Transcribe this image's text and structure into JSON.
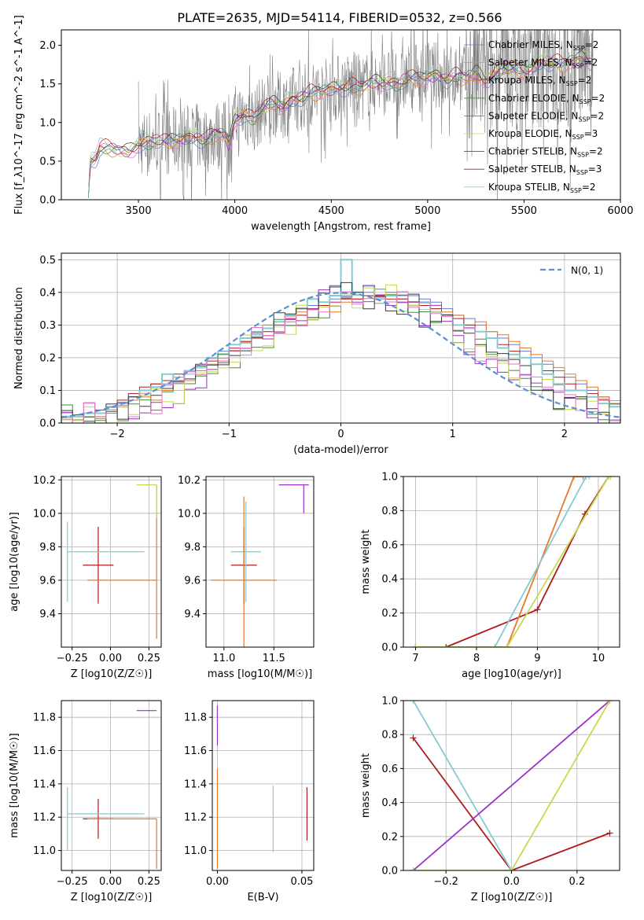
{
  "title": "PLATE=2635, MJD=54114, FIBERID=0532, z=0.566",
  "colors": {
    "chabrier_miles": "#5b7fd0",
    "salpeter_miles": "#e377c2",
    "kroupa_miles": "#e8772a",
    "chabrier_elodie": "#3f8f3f",
    "salpeter_elodie": "#9b30c8",
    "kroupa_elodie": "#c8d850",
    "chabrier_stelib": "#3a3a3a",
    "salpeter_stelib": "#b01a1a",
    "kroupa_stelib": "#85cbd3",
    "spectrum": "#808080",
    "normal": "#5b8fd6"
  },
  "chart_data": [
    {
      "id": "spectrum",
      "type": "line",
      "xlabel": "wavelength [Angstrom, rest frame]",
      "ylabel": "Flux [f_λ10^-17 erg cm^-2 s^-1 A^-1]",
      "xlim": [
        3100,
        6000
      ],
      "ylim": [
        0,
        2.2
      ],
      "xticks": [
        "3500",
        "4000",
        "4500",
        "5000",
        "5500",
        "6000"
      ],
      "yticks": [
        "0.0",
        "0.5",
        "1.0",
        "1.5",
        "2.0"
      ],
      "grid": false,
      "legend_position": "top-right",
      "legend": [
        {
          "text": "Chabrier MILES, N",
          "sub": "SSP",
          "suffix": "=2"
        },
        {
          "text": "Salpeter MILES, N",
          "sub": "SSP",
          "suffix": "=2"
        },
        {
          "text": "Kroupa MILES, N",
          "sub": "SSP",
          "suffix": "=2"
        },
        {
          "text": "Chabrier ELODIE, N",
          "sub": "SSP",
          "suffix": "=2"
        },
        {
          "text": "Salpeter ELODIE, N",
          "sub": "SSP",
          "suffix": "=2"
        },
        {
          "text": "Kroupa ELODIE, N",
          "sub": "SSP",
          "suffix": "=3"
        },
        {
          "text": "Chabrier STELIB, N",
          "sub": "SSP",
          "suffix": "=2"
        },
        {
          "text": "Salpeter STELIB, N",
          "sub": "SSP",
          "suffix": "=3"
        },
        {
          "text": "Kroupa STELIB, N",
          "sub": "SSP",
          "suffix": "=2"
        }
      ],
      "model_curve": {
        "x": [
          3240,
          3250,
          3280,
          3300,
          3350,
          3400,
          3450,
          3500,
          3550,
          3600,
          3650,
          3700,
          3750,
          3800,
          3850,
          3900,
          3950,
          3970,
          4000,
          4050,
          4100,
          4150,
          4200,
          4250,
          4300,
          4350,
          4400,
          4450,
          4500,
          4550,
          4600,
          4650,
          4700,
          4750,
          4800,
          4850,
          4900,
          4950,
          5000,
          5050,
          5100,
          5150,
          5200,
          5250,
          5300,
          5400,
          5500,
          5600,
          5700,
          5800,
          5860
        ],
        "y": [
          0.02,
          0.5,
          0.55,
          0.68,
          0.67,
          0.63,
          0.62,
          0.72,
          0.75,
          0.76,
          0.74,
          0.78,
          0.8,
          0.82,
          0.76,
          0.86,
          0.84,
          0.7,
          1.05,
          1.12,
          1.05,
          1.2,
          1.24,
          1.22,
          1.3,
          1.33,
          1.38,
          1.4,
          1.44,
          1.46,
          1.48,
          1.45,
          1.5,
          1.52,
          1.53,
          1.5,
          1.58,
          1.55,
          1.6,
          1.62,
          1.57,
          1.6,
          1.58,
          1.65,
          1.55,
          1.72,
          1.65,
          1.8,
          1.75,
          1.84,
          1.8
        ]
      }
    },
    {
      "id": "residuals",
      "type": "line",
      "xlabel": "(data-model)/error",
      "ylabel": "Normed distribution",
      "xlim": [
        -2.5,
        2.5
      ],
      "ylim": [
        0,
        0.52
      ],
      "xticks": [
        "−2",
        "−1",
        "0",
        "1",
        "2"
      ],
      "yticks": [
        "0.0",
        "0.1",
        "0.2",
        "0.3",
        "0.4",
        "0.5"
      ],
      "grid": true,
      "legend_position": "top-right",
      "legend": [
        {
          "text": "N(0, 1)"
        }
      ],
      "histogram_bin_width": 0.1,
      "histogram_series": [
        {
          "model": "Chabrier MILES",
          "values": [
            0.02,
            0.02,
            0.03,
            0.03,
            0.04,
            0.06,
            0.08,
            0.1,
            0.12,
            0.12,
            0.13,
            0.15,
            0.17,
            0.2,
            0.22,
            0.24,
            0.26,
            0.28,
            0.3,
            0.31,
            0.33,
            0.35,
            0.36,
            0.37,
            0.38,
            0.39,
            0.4,
            0.4,
            0.41,
            0.4,
            0.39,
            0.39,
            0.38,
            0.37,
            0.35,
            0.33,
            0.32,
            0.3,
            0.28,
            0.26,
            0.24,
            0.22,
            0.2,
            0.18,
            0.16,
            0.14,
            0.12,
            0.1,
            0.08,
            0.06
          ]
        },
        {
          "model": "Kroupa MILES",
          "values": [
            0.01,
            0.01,
            0.02,
            0.02,
            0.03,
            0.05,
            0.07,
            0.08,
            0.07,
            0.1,
            0.14,
            0.13,
            0.16,
            0.18,
            0.19,
            0.22,
            0.25,
            0.27,
            0.3,
            0.28,
            0.31,
            0.34,
            0.35,
            0.36,
            0.34,
            0.37,
            0.38,
            0.39,
            0.38,
            0.4,
            0.38,
            0.36,
            0.37,
            0.35,
            0.34,
            0.33,
            0.3,
            0.31,
            0.28,
            0.27,
            0.25,
            0.23,
            0.21,
            0.19,
            0.17,
            0.15,
            0.13,
            0.11,
            0.08,
            0.06
          ]
        },
        {
          "model": "Salpeter STELIB",
          "values": [
            0.02,
            0.02,
            0.03,
            0.04,
            0.05,
            0.07,
            0.09,
            0.11,
            0.12,
            0.13,
            0.15,
            0.16,
            0.18,
            0.19,
            0.21,
            0.23,
            0.25,
            0.26,
            0.28,
            0.3,
            0.32,
            0.33,
            0.35,
            0.36,
            0.37,
            0.38,
            0.38,
            0.39,
            0.39,
            0.38,
            0.38,
            0.37,
            0.36,
            0.35,
            0.33,
            0.32,
            0.3,
            0.28,
            0.26,
            0.24,
            0.22,
            0.2,
            0.18,
            0.16,
            0.14,
            0.12,
            0.1,
            0.09,
            0.07,
            0.05
          ]
        },
        {
          "model": "Kroupa STELIB",
          "values": [
            0.02,
            0.02,
            0.03,
            0.03,
            0.05,
            0.06,
            0.08,
            0.1,
            0.11,
            0.15,
            0.13,
            0.16,
            0.17,
            0.2,
            0.21,
            0.24,
            0.26,
            0.27,
            0.29,
            0.31,
            0.33,
            0.35,
            0.38,
            0.37,
            0.39,
            0.5,
            0.4,
            0.42,
            0.38,
            0.39,
            0.37,
            0.36,
            0.37,
            0.34,
            0.33,
            0.3,
            0.29,
            0.28,
            0.26,
            0.23,
            0.21,
            0.2,
            0.18,
            0.15,
            0.12,
            0.1,
            0.1,
            0.08,
            0.06,
            0.05
          ]
        }
      ],
      "normal_curve": {
        "mean": 0,
        "sigma": 1
      }
    },
    {
      "id": "age-vs-Z",
      "type": "scatter",
      "xlabel": "Z [log10(Z/Z☉)]",
      "ylabel": "age [log10(age/yr)]",
      "xlim": [
        -0.32,
        0.33
      ],
      "ylim": [
        9.2,
        10.22
      ],
      "xticks": [
        "−0.25",
        "0.00",
        "0.25"
      ],
      "yticks": [
        "9.4",
        "9.6",
        "9.8",
        "10.0",
        "10.2"
      ],
      "grid": true,
      "points": [
        {
          "x": -0.08,
          "y": 9.69,
          "xerr": 0.1,
          "yerr": 0.23,
          "model": "Salpeter STELIB"
        },
        {
          "x": -0.28,
          "y": 9.77,
          "xerr": [
            0.0,
            0.5
          ],
          "yerr": [
            0.3,
            0.18
          ],
          "model": "Kroupa STELIB"
        },
        {
          "x": 0.3,
          "y": 9.6,
          "xerr": [
            0.45,
            0.0
          ],
          "yerr": [
            0.35,
            0.57
          ],
          "model": "Kroupa MILES"
        },
        {
          "x": 0.3,
          "y": 10.17,
          "xerr": [
            0.13,
            0.0
          ],
          "yerr": [
            0.2,
            0.0
          ],
          "model": "Kroupa ELODIE"
        }
      ]
    },
    {
      "id": "age-vs-mass",
      "type": "scatter",
      "xlabel": "mass [log10(M/M☉)]",
      "ylabel": "",
      "xlim": [
        10.82,
        11.9
      ],
      "ylim": [
        9.2,
        10.22
      ],
      "xticks": [
        "11.0",
        "11.5"
      ],
      "yticks": [
        "9.4",
        "9.6",
        "9.8",
        "10.0",
        "10.2"
      ],
      "grid": true,
      "points": [
        {
          "x": 11.2,
          "y": 9.69,
          "xerr": 0.13,
          "yerr": 0.23,
          "model": "Salpeter STELIB"
        },
        {
          "x": 11.22,
          "y": 9.77,
          "xerr": 0.15,
          "yerr": 0.3,
          "model": "Kroupa STELIB"
        },
        {
          "x": 11.2,
          "y": 9.6,
          "xerr": 0.33,
          "yerr": 0.5,
          "model": "Kroupa MILES"
        },
        {
          "x": 11.8,
          "y": 10.17,
          "xerr": [
            0.25,
            0.05
          ],
          "yerr": [
            0.17,
            0.0
          ],
          "model": "Salpeter ELODIE"
        }
      ]
    },
    {
      "id": "weight-vs-age",
      "type": "line",
      "xlabel": "age [log10(age/yr)]",
      "ylabel": "mass weight",
      "xlim": [
        6.8,
        10.35
      ],
      "ylim": [
        0,
        1
      ],
      "xticks": [
        "7",
        "8",
        "9",
        "10"
      ],
      "yticks": [
        "0.0",
        "0.2",
        "0.4",
        "0.6",
        "0.8",
        "1.0"
      ],
      "grid": true,
      "series": [
        {
          "model": "Salpeter STELIB",
          "x": [
            7.0,
            7.5,
            9.0,
            9.78,
            10.17
          ],
          "y": [
            0.0,
            0.0,
            0.22,
            0.78,
            1.0
          ]
        },
        {
          "model": "Kroupa MILES",
          "x": [
            7.0,
            8.5,
            9.6,
            9.75
          ],
          "y": [
            0.0,
            0.0,
            1.0,
            1.0
          ]
        },
        {
          "model": "Kroupa STELIB",
          "x": [
            7.0,
            8.3,
            9.8,
            9.85
          ],
          "y": [
            0.0,
            0.0,
            1.0,
            1.0
          ]
        },
        {
          "model": "Kroupa ELODIE",
          "x": [
            7.0,
            8.5,
            10.17,
            10.2
          ],
          "y": [
            0.0,
            0.0,
            1.0,
            1.0
          ]
        }
      ]
    },
    {
      "id": "mass-vs-Z",
      "type": "scatter",
      "xlabel": "Z [log10(Z/Z☉)]",
      "ylabel": "mass [log10(M/M☉)]",
      "xlim": [
        -0.32,
        0.33
      ],
      "ylim": [
        10.88,
        11.9
      ],
      "xticks": [
        "−0.25",
        "0.00",
        "0.25"
      ],
      "yticks": [
        "11.0",
        "11.2",
        "11.4",
        "11.6",
        "11.8"
      ],
      "grid": true,
      "points": [
        {
          "x": -0.08,
          "y": 11.19,
          "xerr": 0.1,
          "yerr": 0.12,
          "model": "Salpeter STELIB"
        },
        {
          "x": -0.28,
          "y": 11.22,
          "xerr": [
            0.0,
            0.5
          ],
          "yerr": [
            0.22,
            0.16
          ],
          "model": "Kroupa STELIB"
        },
        {
          "x": 0.3,
          "y": 11.19,
          "xerr": [
            0.45,
            0.0
          ],
          "yerr": [
            0.3,
            0.0
          ],
          "model": "Kroupa MILES"
        },
        {
          "x": 0.3,
          "y": 11.84,
          "xerr": [
            0.13,
            0.0
          ],
          "yerr": [
            0.0,
            0.0
          ],
          "model": "Salpeter ELODIE"
        }
      ]
    },
    {
      "id": "mass-vs-ebv",
      "type": "scatter",
      "xlabel": "E(B-V)",
      "ylabel": "",
      "xlim": [
        -0.003,
        0.057
      ],
      "ylim": [
        10.88,
        11.9
      ],
      "xticks": [
        "0.00",
        "0.05"
      ],
      "yticks": [
        "11.0",
        "11.2",
        "11.4",
        "11.6",
        "11.8"
      ],
      "grid": true,
      "points": [
        {
          "x": 0.053,
          "y": 11.22,
          "yerr": 0.16,
          "model": "Salpeter STELIB"
        },
        {
          "x": 0.033,
          "y": 11.19,
          "yerr": 0.2,
          "model": "Kroupa STELIB"
        },
        {
          "x": 0.0,
          "y": 11.19,
          "yerr": 0.3,
          "model": "Kroupa MILES"
        },
        {
          "x": 0.0,
          "y": 11.75,
          "yerr": 0.12,
          "model": "Salpeter ELODIE"
        }
      ]
    },
    {
      "id": "weight-vs-Z",
      "type": "line",
      "xlabel": "Z [log10(Z/Z☉)]",
      "ylabel": "mass weight",
      "xlim": [
        -0.33,
        0.33
      ],
      "ylim": [
        0,
        1
      ],
      "xticks": [
        "−0.2",
        "0.0",
        "0.2"
      ],
      "yticks": [
        "0.0",
        "0.2",
        "0.4",
        "0.6",
        "0.8",
        "1.0"
      ],
      "grid": true,
      "series": [
        {
          "model": "Salpeter STELIB",
          "x": [
            -0.3,
            0.0,
            0.3
          ],
          "y": [
            0.78,
            0.0,
            0.22
          ]
        },
        {
          "model": "Kroupa STELIB",
          "x": [
            -0.3,
            0.0
          ],
          "y": [
            1.0,
            0.0
          ]
        },
        {
          "model": "Salpeter ELODIE",
          "x": [
            -0.3,
            0.3
          ],
          "y": [
            0.0,
            1.0
          ]
        },
        {
          "model": "Kroupa ELODIE",
          "x": [
            -0.3,
            0.0,
            0.3
          ],
          "y": [
            0.0,
            0.0,
            1.0
          ]
        }
      ]
    }
  ]
}
